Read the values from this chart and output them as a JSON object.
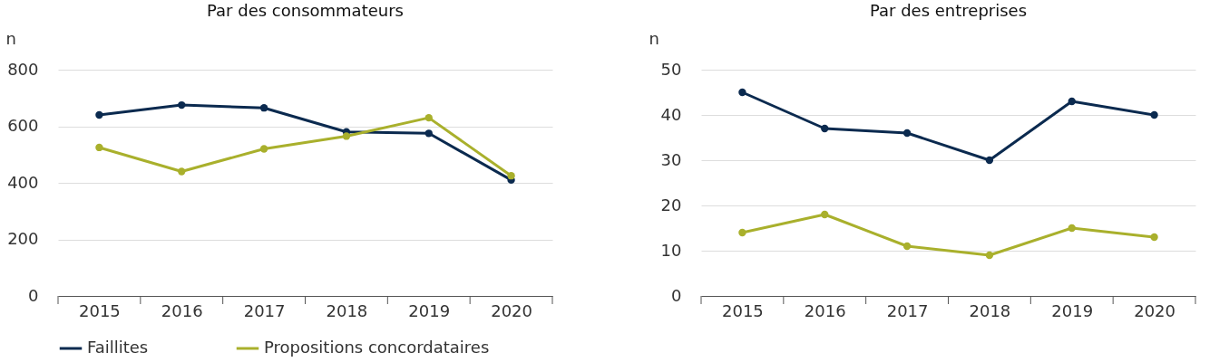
{
  "chart_data": [
    {
      "type": "line",
      "title": "Par des consommateurs",
      "ylabel": "n",
      "categories": [
        "2015",
        "2016",
        "2017",
        "2018",
        "2019",
        "2020"
      ],
      "ylim": [
        0,
        800
      ],
      "yticks": [
        0,
        200,
        400,
        600,
        800
      ],
      "grid": "y",
      "legend": "bottom",
      "marker": "circle",
      "series": [
        {
          "name": "Faillites",
          "color": "#0b2a4f",
          "values": [
            640,
            675,
            665,
            580,
            575,
            410
          ]
        },
        {
          "name": "Propositions concordataires",
          "color": "#a9b02c",
          "values": [
            525,
            440,
            520,
            565,
            630,
            425
          ]
        }
      ]
    },
    {
      "type": "line",
      "title": "Par des entreprises",
      "ylabel": "n",
      "categories": [
        "2015",
        "2016",
        "2017",
        "2018",
        "2019",
        "2020"
      ],
      "ylim": [
        0,
        50
      ],
      "yticks": [
        0,
        10,
        20,
        30,
        40,
        50
      ],
      "grid": "y",
      "legend": "bottom",
      "marker": "circle",
      "series": [
        {
          "name": "Faillites",
          "color": "#0b2a4f",
          "values": [
            45,
            37,
            36,
            30,
            43,
            40
          ]
        },
        {
          "name": "Propositions concordataires",
          "color": "#a9b02c",
          "values": [
            14,
            18,
            11,
            9,
            15,
            13
          ]
        }
      ]
    }
  ]
}
